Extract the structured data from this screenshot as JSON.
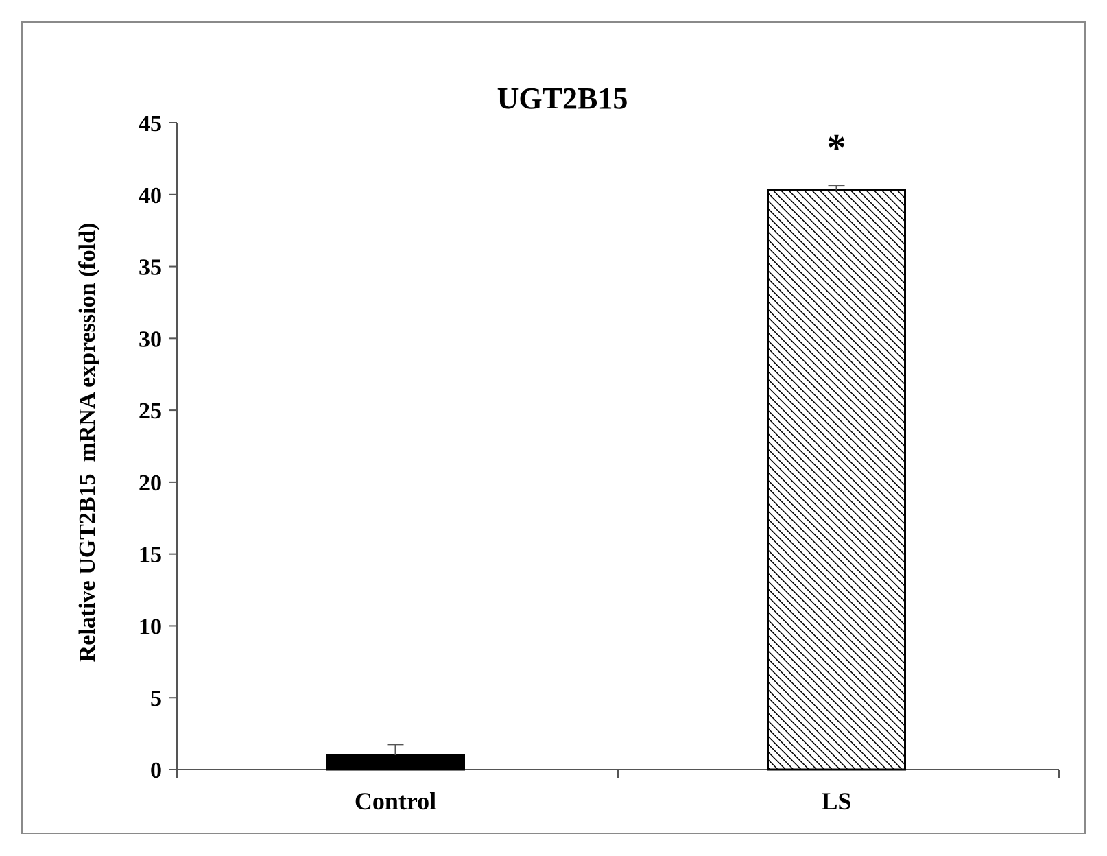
{
  "chart_data": {
    "type": "bar",
    "title": "UGT2B15",
    "xlabel": "",
    "ylabel": "Relative UGT2B15  mRNA expression (fold)",
    "categories": [
      "Control",
      "LS"
    ],
    "values": [
      1,
      40.3
    ],
    "error_bars": [
      0.75,
      0.35
    ],
    "ylim": [
      0,
      45
    ],
    "yticks": [
      0,
      5,
      10,
      15,
      20,
      25,
      30,
      35,
      40,
      45
    ],
    "ytick_labels": [
      "0",
      "5",
      "10",
      "15",
      "20",
      "25",
      "30",
      "35",
      "40",
      "45"
    ],
    "annotations": [
      {
        "category": "LS",
        "text": "*"
      }
    ],
    "bar_fills": [
      "solid",
      "hatched"
    ],
    "colors": {
      "solid_bar": "#000000",
      "hatch_line": "#000000",
      "background": "#ffffff",
      "frame": "#8a8a8a"
    },
    "grid": false,
    "legend": "none"
  }
}
